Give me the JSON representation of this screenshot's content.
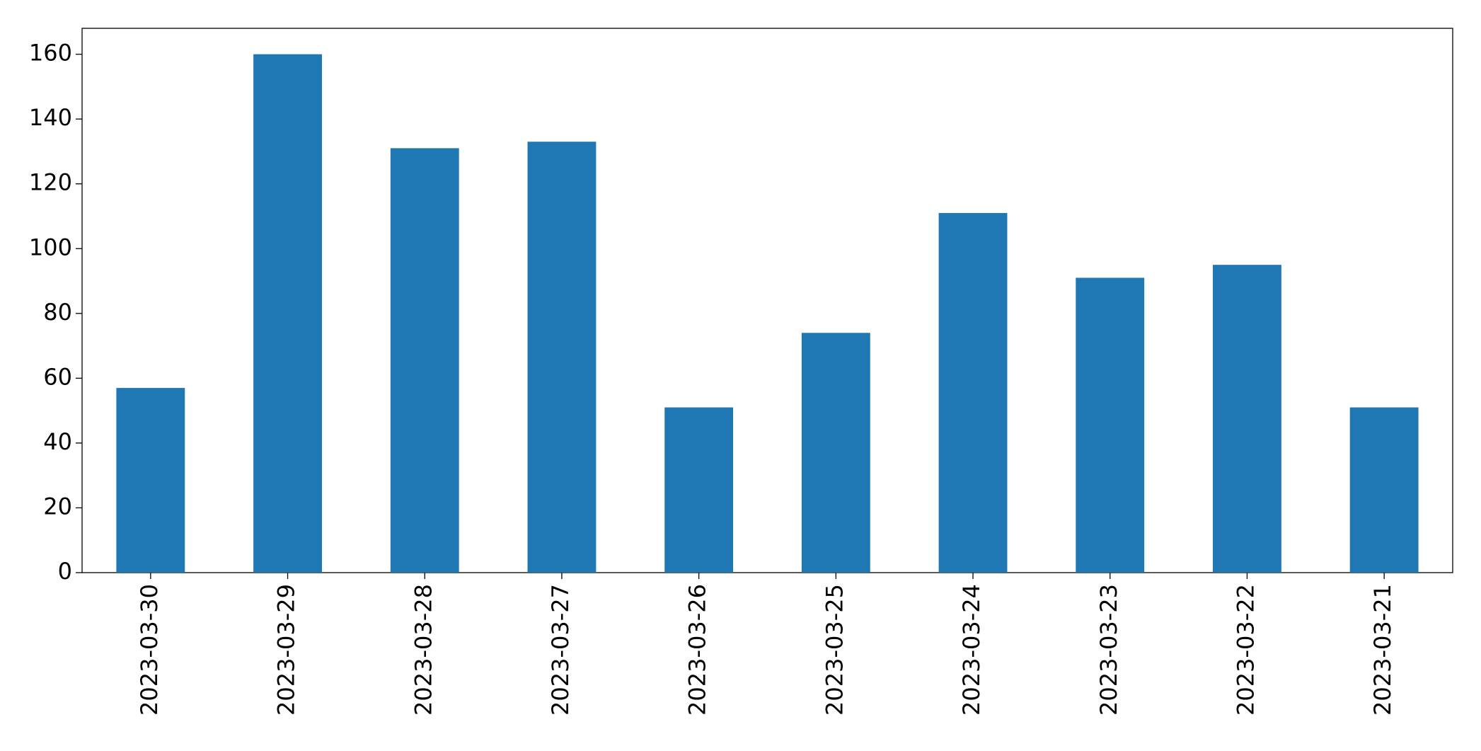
{
  "chart_data": {
    "type": "bar",
    "categories": [
      "2023-03-30",
      "2023-03-29",
      "2023-03-28",
      "2023-03-27",
      "2023-03-26",
      "2023-03-25",
      "2023-03-24",
      "2023-03-23",
      "2023-03-22",
      "2023-03-21"
    ],
    "values": [
      57,
      160,
      131,
      133,
      51,
      74,
      111,
      91,
      95,
      51
    ],
    "color": "#1f77b4",
    "ylim": [
      0,
      168
    ],
    "yticks": [
      0,
      20,
      40,
      60,
      80,
      100,
      120,
      140,
      160
    ],
    "grid": false
  }
}
